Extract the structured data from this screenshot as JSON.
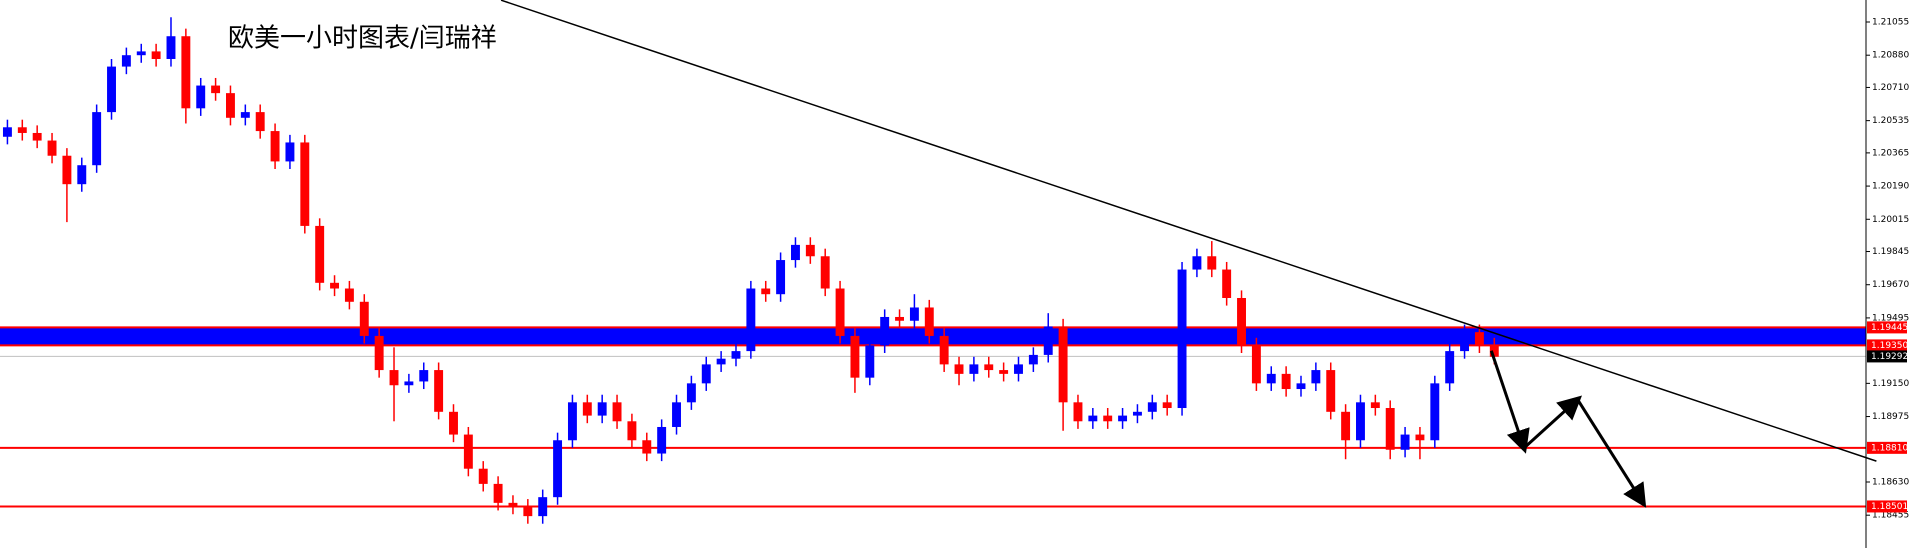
{
  "chart_data": {
    "type": "candlestick",
    "title": "欧美一小时图表/闫瑞祥",
    "up_color": "#0000ff",
    "down_color": "#ff0000",
    "open": [
      1.2045,
      1.205,
      1.2047,
      1.2043,
      1.2035,
      1.202,
      1.203,
      1.2058,
      1.2082,
      1.2088,
      1.209,
      1.2086,
      1.2098,
      1.206,
      1.2072,
      1.2068,
      1.2055,
      1.2058,
      1.2048,
      1.2032,
      1.2042,
      1.1998,
      1.1968,
      1.1965,
      1.1958,
      1.194,
      1.1922,
      1.1914,
      1.1916,
      1.1922,
      1.19,
      1.1888,
      1.187,
      1.1862,
      1.1852,
      1.185,
      1.1845,
      1.1855,
      1.1885,
      1.1905,
      1.1898,
      1.1905,
      1.1895,
      1.1885,
      1.1878,
      1.1892,
      1.1905,
      1.1915,
      1.1925,
      1.1928,
      1.1932,
      1.1965,
      1.1962,
      1.198,
      1.1988,
      1.1982,
      1.1965,
      1.194,
      1.1918,
      1.1935,
      1.195,
      1.1948,
      1.1955,
      1.194,
      1.1925,
      1.192,
      1.1925,
      1.1922,
      1.192,
      1.1925,
      1.193,
      1.1945,
      1.1905,
      1.1895,
      1.1898,
      1.1895,
      1.1898,
      1.19,
      1.1905,
      1.1902,
      1.1975,
      1.1982,
      1.1975,
      1.196,
      1.1935,
      1.1915,
      1.192,
      1.1912,
      1.1915,
      1.1922,
      1.19,
      1.1885,
      1.1905,
      1.1902,
      1.188,
      1.1888,
      1.1885,
      1.1915,
      1.1932,
      1.1942,
      1.1935
    ],
    "high": [
      1.2054,
      1.2054,
      1.2051,
      1.2047,
      1.2039,
      1.2034,
      1.2062,
      1.2086,
      1.2092,
      1.2094,
      1.2094,
      1.2108,
      1.2102,
      1.2076,
      1.2076,
      1.2072,
      1.2062,
      1.2062,
      1.2052,
      1.2046,
      1.2046,
      1.2002,
      1.1972,
      1.1969,
      1.1962,
      1.1944,
      1.1934,
      1.192,
      1.1926,
      1.1926,
      1.1904,
      1.1892,
      1.1874,
      1.1866,
      1.1856,
      1.1854,
      1.1859,
      1.1889,
      1.1909,
      1.1909,
      1.1909,
      1.1909,
      1.1899,
      1.1889,
      1.1896,
      1.1909,
      1.1919,
      1.1929,
      1.1932,
      1.1936,
      1.1969,
      1.1969,
      1.1984,
      1.1992,
      1.1992,
      1.1986,
      1.1969,
      1.1944,
      1.1939,
      1.1954,
      1.1954,
      1.1962,
      1.1959,
      1.1944,
      1.1929,
      1.1929,
      1.1929,
      1.1926,
      1.1929,
      1.1934,
      1.1952,
      1.1949,
      1.1909,
      1.1902,
      1.1902,
      1.1902,
      1.1904,
      1.1909,
      1.1909,
      1.1979,
      1.1986,
      1.199,
      1.1979,
      1.1964,
      1.1939,
      1.1924,
      1.1924,
      1.1919,
      1.1926,
      1.1926,
      1.1904,
      1.1909,
      1.1909,
      1.1906,
      1.1892,
      1.1892,
      1.1919,
      1.1936,
      1.1946,
      1.1946,
      1.1939
    ],
    "low": [
      1.2041,
      1.2043,
      1.2039,
      1.2031,
      1.2,
      1.2016,
      1.2026,
      1.2054,
      1.2078,
      1.2084,
      1.2082,
      1.2082,
      1.2052,
      1.2056,
      1.2064,
      1.2051,
      1.2051,
      1.2044,
      1.2028,
      1.2028,
      1.1994,
      1.1964,
      1.1961,
      1.1954,
      1.1936,
      1.1918,
      1.1895,
      1.191,
      1.1912,
      1.1896,
      1.1884,
      1.1866,
      1.1858,
      1.1848,
      1.1846,
      1.1841,
      1.1841,
      1.1851,
      1.1881,
      1.1894,
      1.1894,
      1.1891,
      1.1881,
      1.1874,
      1.1874,
      1.1888,
      1.1901,
      1.1911,
      1.1921,
      1.1924,
      1.1928,
      1.1958,
      1.1958,
      1.1976,
      1.1978,
      1.1961,
      1.1936,
      1.191,
      1.1914,
      1.1931,
      1.1944,
      1.1944,
      1.1936,
      1.1921,
      1.1914,
      1.1916,
      1.1918,
      1.1916,
      1.1916,
      1.1921,
      1.1926,
      1.189,
      1.1891,
      1.1891,
      1.1891,
      1.1891,
      1.1894,
      1.1896,
      1.1898,
      1.1898,
      1.1971,
      1.1971,
      1.1956,
      1.1931,
      1.1911,
      1.1911,
      1.1908,
      1.1908,
      1.1911,
      1.1896,
      1.1875,
      1.1881,
      1.1898,
      1.1875,
      1.1876,
      1.1875,
      1.1881,
      1.1911,
      1.1928,
      1.1931,
      1.1925
    ],
    "close": [
      1.205,
      1.2047,
      1.2043,
      1.2035,
      1.202,
      1.203,
      1.2058,
      1.2082,
      1.2088,
      1.209,
      1.2086,
      1.2098,
      1.206,
      1.2072,
      1.2068,
      1.2055,
      1.2058,
      1.2048,
      1.2032,
      1.2042,
      1.1998,
      1.1968,
      1.1965,
      1.1958,
      1.194,
      1.1922,
      1.1914,
      1.1916,
      1.1922,
      1.19,
      1.1888,
      1.187,
      1.1862,
      1.1852,
      1.185,
      1.1845,
      1.1855,
      1.1885,
      1.1905,
      1.1898,
      1.1905,
      1.1895,
      1.1885,
      1.1878,
      1.1892,
      1.1905,
      1.1915,
      1.1925,
      1.1928,
      1.1932,
      1.1965,
      1.1962,
      1.198,
      1.1988,
      1.1982,
      1.1965,
      1.194,
      1.1918,
      1.1935,
      1.195,
      1.1948,
      1.1955,
      1.194,
      1.1925,
      1.192,
      1.1925,
      1.1922,
      1.192,
      1.1925,
      1.193,
      1.1945,
      1.1905,
      1.1895,
      1.1898,
      1.1895,
      1.1898,
      1.19,
      1.1905,
      1.1902,
      1.1975,
      1.1982,
      1.1975,
      1.196,
      1.1935,
      1.1915,
      1.192,
      1.1912,
      1.1915,
      1.1922,
      1.19,
      1.1885,
      1.1905,
      1.1902,
      1.188,
      1.1888,
      1.1885,
      1.1915,
      1.1932,
      1.1942,
      1.1935,
      1.1929
    ],
    "xlim": [
      -0.5,
      125
    ],
    "ylim": [
      1.18282,
      1.21171
    ],
    "yticks": [
      1.21055,
      {
        "value": 1.2088,
        "label": "1.20880"
      },
      {
        "value": 1.2071,
        "label": "1.20710"
      },
      1.20535,
      1.20365,
      {
        "value": 1.2019,
        "label": "1.20190"
      },
      1.20015,
      1.19845,
      {
        "value": 1.1967,
        "label": "1.19670"
      },
      1.19495,
      {
        "value": 1.1915,
        "label": "1.19150"
      },
      1.18975,
      {
        "value": 1.1863,
        "label": "1.18630"
      },
      1.18455
    ],
    "zone_color": "#0000ff",
    "levels": [
      {
        "value": 1.19445,
        "label": "1.19445",
        "color": "#ff0000",
        "label_color": "#ff0000"
      },
      {
        "value": 1.1935,
        "label": "1.19350",
        "color": "#ff0000",
        "label_color": "#ff0000"
      },
      {
        "value": 1.19292,
        "label": "1.19292",
        "color": "#c0c0c0",
        "label_color": "#000000"
      },
      {
        "value": 1.1881,
        "label": "1.18810",
        "color": "#ff0000",
        "label_color": "#ff0000"
      },
      {
        "value": 1.18501,
        "label": "1.18501",
        "color": "#ff0000",
        "label_color": "#ff0000"
      }
    ],
    "trendline": {
      "x": [
        33.2,
        125.7
      ],
      "y": [
        1.2117,
        1.1874
      ],
      "color": "#000000"
    },
    "projection": {
      "x": [
        99.8,
        102.0,
        105.6,
        110.0
      ],
      "y": [
        1.19322,
        1.18809,
        1.19065,
        1.1852
      ],
      "color": "#000000"
    }
  }
}
